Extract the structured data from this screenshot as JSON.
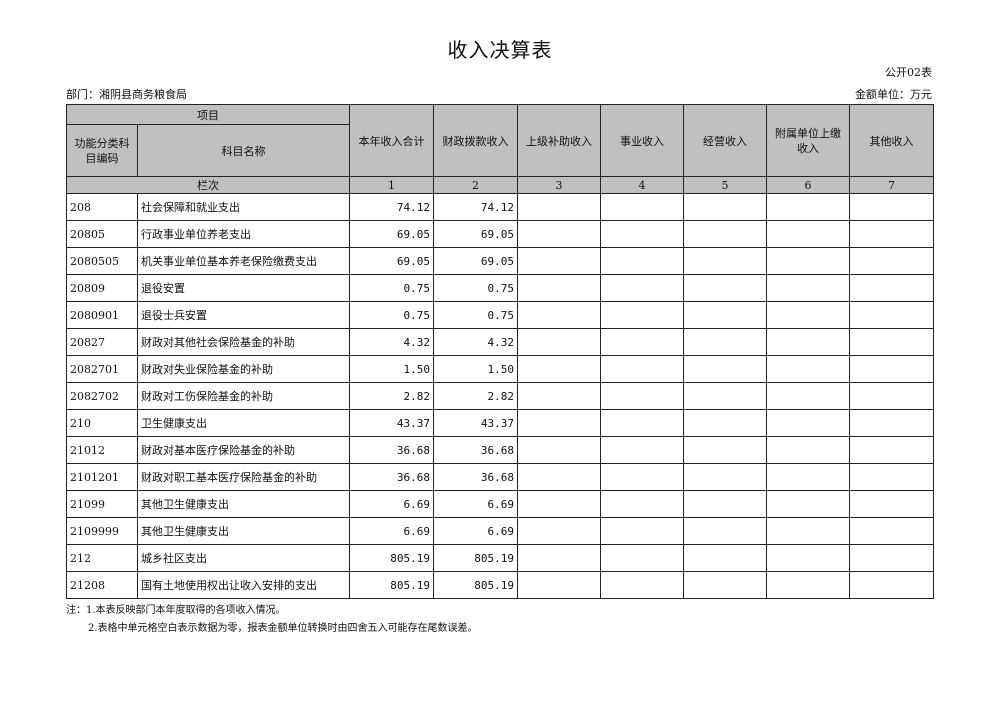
{
  "title": "收入决算表",
  "form_code": "公开02表",
  "department": "部门：湘阴县商务粮食局",
  "unit": "金额单位：万元",
  "headers": {
    "item": "项目",
    "code": "功能分类科目编码",
    "name": "科目名称",
    "lanci": "栏次",
    "cols": [
      "本年收入合计",
      "财政拨款收入",
      "上级补助收入",
      "事业收入",
      "经营收入",
      "附属单位上缴收入",
      "其他收入"
    ],
    "nums": [
      "1",
      "2",
      "3",
      "4",
      "5",
      "6",
      "7"
    ]
  },
  "rows": [
    {
      "code": "208",
      "name": "社会保障和就业支出",
      "total": "74.12",
      "fiscal": "74.12"
    },
    {
      "code": "20805",
      "name": "行政事业单位养老支出",
      "total": "69.05",
      "fiscal": "69.05"
    },
    {
      "code": "2080505",
      "name": "机关事业单位基本养老保险缴费支出",
      "total": "69.05",
      "fiscal": "69.05"
    },
    {
      "code": "20809",
      "name": "退役安置",
      "total": "0.75",
      "fiscal": "0.75"
    },
    {
      "code": "2080901",
      "name": "退役士兵安置",
      "total": "0.75",
      "fiscal": "0.75"
    },
    {
      "code": "20827",
      "name": "财政对其他社会保险基金的补助",
      "total": "4.32",
      "fiscal": "4.32"
    },
    {
      "code": "2082701",
      "name": "财政对失业保险基金的补助",
      "total": "1.50",
      "fiscal": "1.50"
    },
    {
      "code": "2082702",
      "name": "财政对工伤保险基金的补助",
      "total": "2.82",
      "fiscal": "2.82"
    },
    {
      "code": "210",
      "name": "卫生健康支出",
      "total": "43.37",
      "fiscal": "43.37"
    },
    {
      "code": "21012",
      "name": "财政对基本医疗保险基金的补助",
      "total": "36.68",
      "fiscal": "36.68"
    },
    {
      "code": "2101201",
      "name": "财政对职工基本医疗保险基金的补助",
      "total": "36.68",
      "fiscal": "36.68"
    },
    {
      "code": "21099",
      "name": "其他卫生健康支出",
      "total": "6.69",
      "fiscal": "6.69"
    },
    {
      "code": "2109999",
      "name": "其他卫生健康支出",
      "total": "6.69",
      "fiscal": "6.69"
    },
    {
      "code": "212",
      "name": "城乡社区支出",
      "total": "805.19",
      "fiscal": "805.19"
    },
    {
      "code": "21208",
      "name": "国有土地使用权出让收入安排的支出",
      "total": "805.19",
      "fiscal": "805.19"
    }
  ],
  "notes": [
    "注：1.本表反映部门本年度取得的各项收入情况。",
    "2.表格中单元格空白表示数据为零，报表金额单位转换时由四舍五入可能存在尾数误差。"
  ]
}
